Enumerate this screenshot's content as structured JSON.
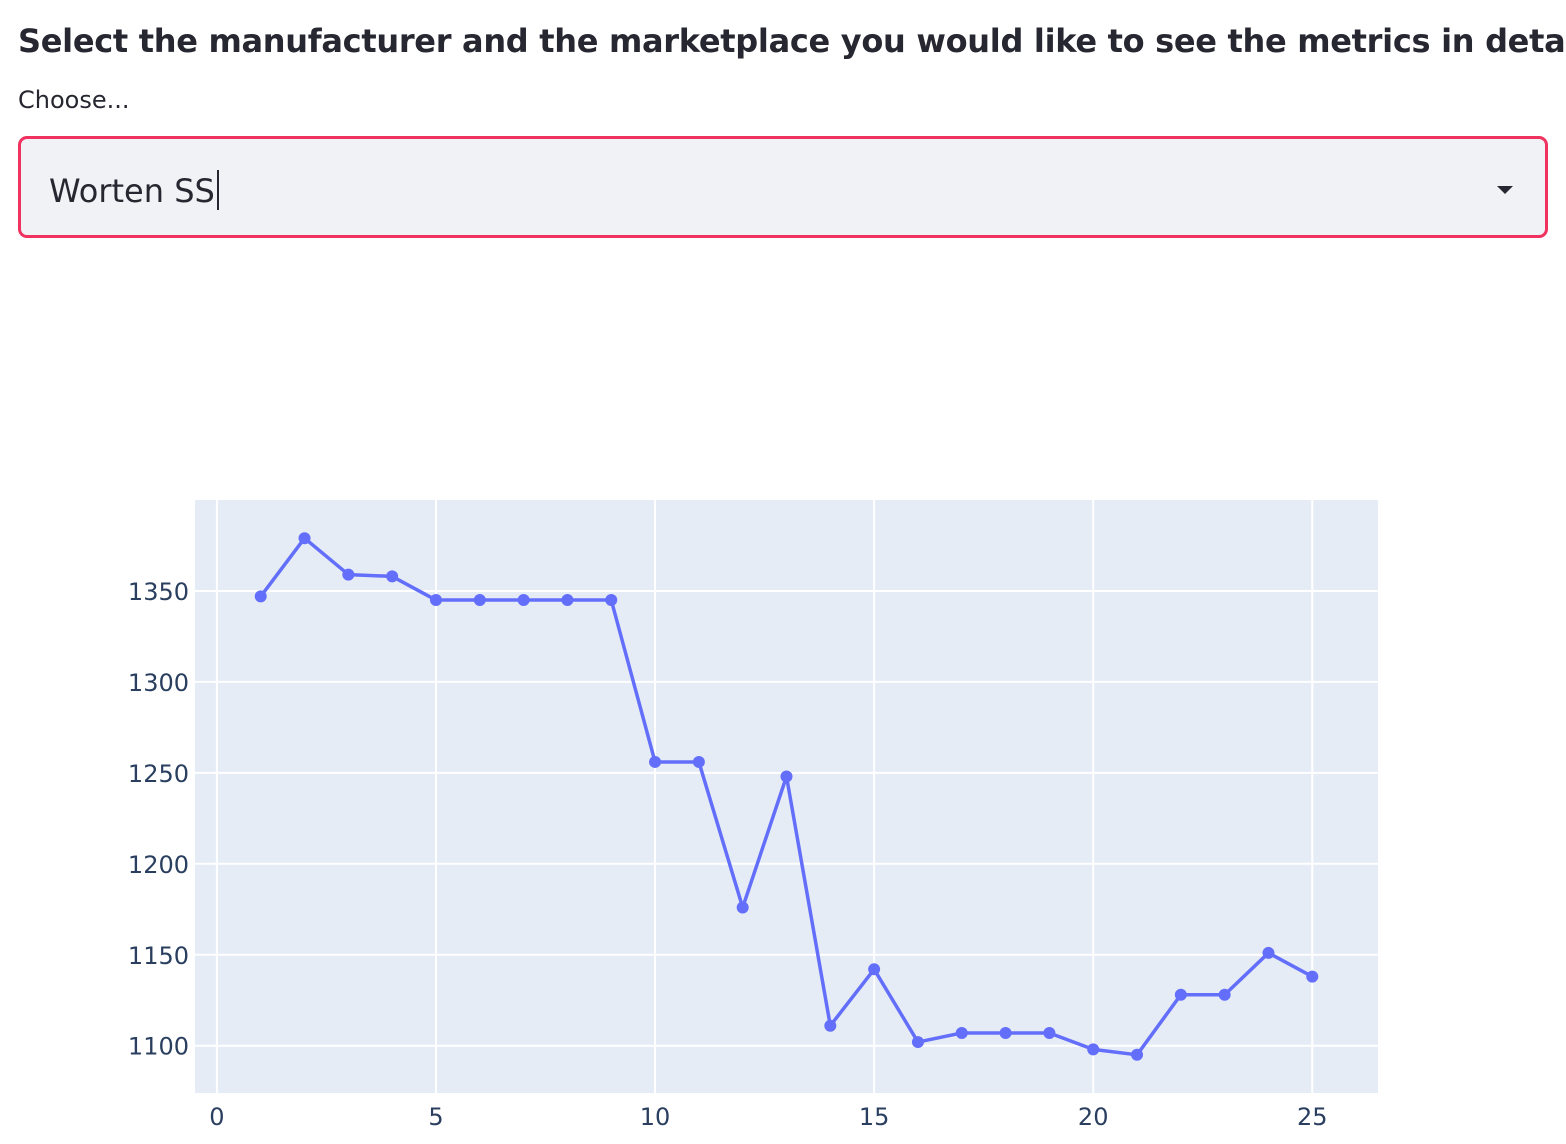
{
  "page": {
    "heading": "Select the manufacturer and the marketplace you would like to see the metrics in detail"
  },
  "selector": {
    "label": "Choose...",
    "value": "Worten SS",
    "accent_color": "#f0325f",
    "icon": "chevron-down-icon"
  },
  "chart_data": {
    "type": "line",
    "markers": true,
    "x": [
      1,
      2,
      3,
      4,
      5,
      6,
      7,
      8,
      9,
      10,
      11,
      12,
      13,
      14,
      15,
      16,
      17,
      18,
      19,
      20,
      21,
      22,
      23,
      24,
      25
    ],
    "series": [
      {
        "values": [
          1347,
          1379,
          1359,
          1358,
          1345,
          1345,
          1345,
          1345,
          1345,
          1256,
          1256,
          1176,
          1248,
          1111,
          1142,
          1102,
          1107,
          1107,
          1107,
          1098,
          1095,
          1128,
          1128,
          1151,
          1138
        ],
        "color": "#636efa"
      }
    ],
    "xlim": [
      -0.5,
      26.5
    ],
    "ylim": [
      1074,
      1400
    ],
    "xticks": [
      "0",
      "5",
      "10",
      "15",
      "20",
      "25"
    ],
    "yticks": [
      "1100",
      "1150",
      "1200",
      "1250",
      "1300",
      "1350"
    ],
    "grid": true,
    "background_color": "#e5ecf6"
  }
}
